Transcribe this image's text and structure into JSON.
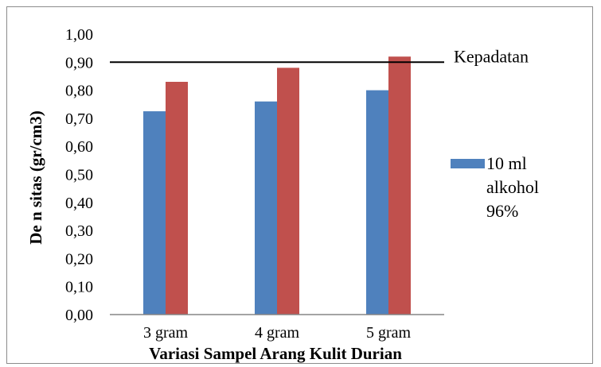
{
  "chart_data": {
    "type": "bar",
    "categories": [
      "3 gram",
      "4 gram",
      "5 gram"
    ],
    "series": [
      {
        "name": "10 ml alkohol 96%",
        "color": "#4f81bd",
        "values": [
          0.725,
          0.76,
          0.8
        ]
      },
      {
        "color": "#c0504d",
        "values": [
          0.83,
          0.88,
          0.92
        ]
      }
    ],
    "reference_line": {
      "value": 0.9,
      "label": "Kepadatan",
      "color": "#000000"
    },
    "xlabel": "Variasi Sampel Arang Kulit Durian",
    "ylabel": "De n sitas (gr/cm3)",
    "ylim": [
      0,
      1
    ],
    "yticks": [
      "0,00",
      "0,10",
      "0,20",
      "0,30",
      "0,40",
      "0,50",
      "0,60",
      "0,70",
      "0,80",
      "0,90",
      "1,00"
    ],
    "legend": {
      "position": "right",
      "lines": [
        "10 ml",
        "alkohol",
        "96%"
      ]
    },
    "grid": false
  }
}
